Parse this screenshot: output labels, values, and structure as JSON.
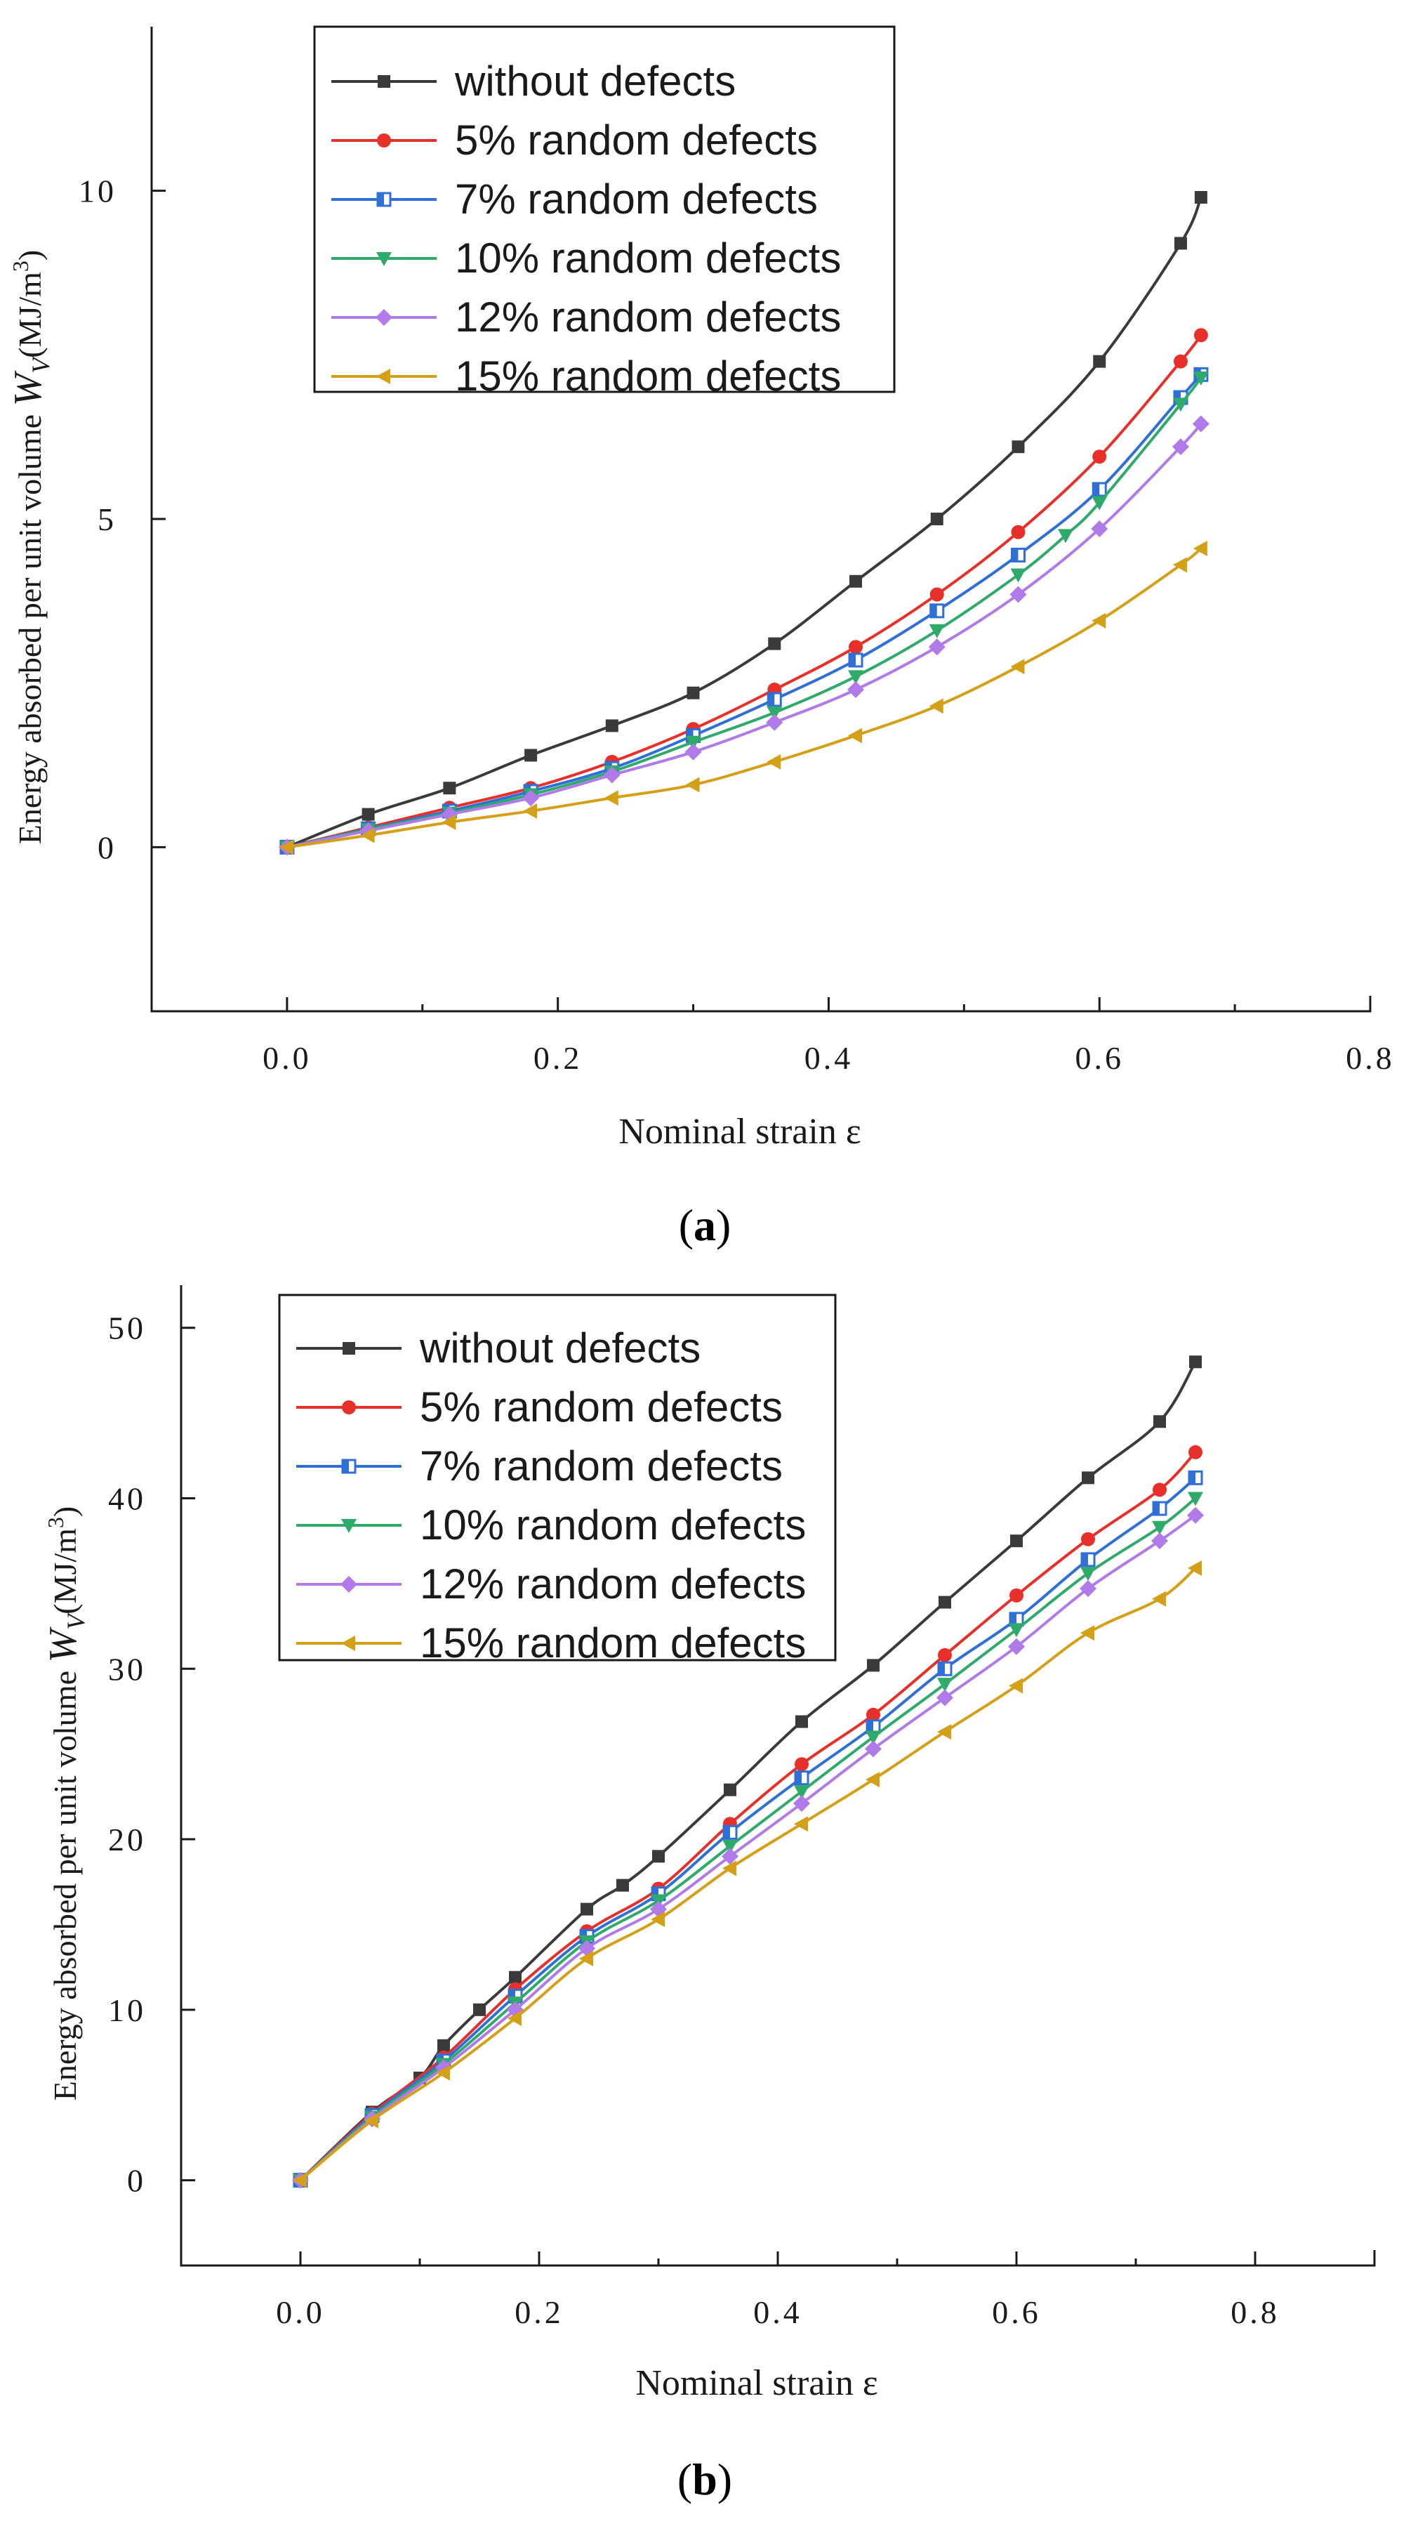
{
  "chart_data": [
    {
      "type": "line",
      "panel": "a",
      "panel_label": "a",
      "xlabel": "Nominal strain ε",
      "ylabel_parts": {
        "prefix": "Energy absorbed per unit volume ",
        "symbol": "W",
        "subscript": "V",
        "unit_open": "(MJ/m",
        "unit_exp": "3",
        "unit_close": ")"
      },
      "xlim": [
        -0.1,
        0.8
      ],
      "ylim": [
        -2.5,
        12.5
      ],
      "xticks": [
        0.0,
        0.2,
        0.4,
        0.6,
        0.8
      ],
      "xtick_labels": [
        "0.0",
        "0.2",
        "0.4",
        "0.6",
        "0.8"
      ],
      "yticks": [
        0,
        5,
        10
      ],
      "ytick_labels": [
        "0",
        "5",
        "10"
      ],
      "legend_placement": "top-left",
      "series": [
        {
          "name": "without defects",
          "color": "#3a3a3a",
          "marker": "square",
          "x": [
            0,
            0.06,
            0.12,
            0.18,
            0.24,
            0.3,
            0.36,
            0.42,
            0.48,
            0.54,
            0.6,
            0.66,
            0.675
          ],
          "y": [
            0,
            0.5,
            0.9,
            1.4,
            1.85,
            2.35,
            3.1,
            4.05,
            5.0,
            6.1,
            7.4,
            9.2,
            9.9
          ]
        },
        {
          "name": "5% random defects",
          "color": "#e8302a",
          "marker": "circle",
          "x": [
            0,
            0.06,
            0.12,
            0.18,
            0.24,
            0.3,
            0.36,
            0.42,
            0.48,
            0.54,
            0.6,
            0.66,
            0.675
          ],
          "y": [
            0,
            0.3,
            0.6,
            0.9,
            1.3,
            1.8,
            2.4,
            3.05,
            3.85,
            4.8,
            5.95,
            7.4,
            7.8
          ]
        },
        {
          "name": "7% random defects",
          "color": "#2f6fd6",
          "marker": "half-square",
          "x": [
            0,
            0.06,
            0.12,
            0.18,
            0.24,
            0.3,
            0.36,
            0.42,
            0.48,
            0.54,
            0.6,
            0.66,
            0.675
          ],
          "y": [
            0,
            0.28,
            0.55,
            0.85,
            1.2,
            1.7,
            2.25,
            2.85,
            3.6,
            4.45,
            5.45,
            6.85,
            7.2
          ]
        },
        {
          "name": "10% random defects",
          "color": "#2eaa6a",
          "marker": "triangle-down",
          "x": [
            0,
            0.06,
            0.12,
            0.18,
            0.24,
            0.3,
            0.36,
            0.42,
            0.48,
            0.54,
            0.575,
            0.6,
            0.66,
            0.675
          ],
          "y": [
            0,
            0.27,
            0.52,
            0.8,
            1.15,
            1.6,
            2.05,
            2.6,
            3.3,
            4.15,
            4.75,
            5.25,
            6.75,
            7.15
          ]
        },
        {
          "name": "12% random defects",
          "color": "#b07ae8",
          "marker": "diamond",
          "x": [
            0,
            0.06,
            0.12,
            0.18,
            0.24,
            0.3,
            0.36,
            0.42,
            0.48,
            0.54,
            0.6,
            0.66,
            0.675
          ],
          "y": [
            0,
            0.25,
            0.5,
            0.75,
            1.1,
            1.45,
            1.9,
            2.4,
            3.05,
            3.85,
            4.85,
            6.1,
            6.45
          ]
        },
        {
          "name": "15% random defects",
          "color": "#d4a017",
          "marker": "triangle-left",
          "x": [
            0,
            0.06,
            0.12,
            0.18,
            0.24,
            0.3,
            0.36,
            0.42,
            0.48,
            0.54,
            0.6,
            0.66,
            0.675
          ],
          "y": [
            0,
            0.18,
            0.38,
            0.55,
            0.75,
            0.95,
            1.3,
            1.7,
            2.15,
            2.75,
            3.45,
            4.3,
            4.55
          ]
        }
      ]
    },
    {
      "type": "line",
      "panel": "b",
      "panel_label": "b",
      "xlabel": "Nominal strain ε",
      "ylabel_parts": {
        "prefix": "Energy absorbed per unit volume ",
        "symbol": "W",
        "subscript": "V",
        "unit_open": "(MJ/m",
        "unit_exp": "3",
        "unit_close": ")"
      },
      "xlim": [
        -0.1,
        0.9
      ],
      "ylim": [
        -5,
        52.5
      ],
      "xticks": [
        0.0,
        0.2,
        0.4,
        0.6,
        0.8
      ],
      "xtick_labels": [
        "0.0",
        "0.2",
        "0.4",
        "0.6",
        "0.8"
      ],
      "yticks": [
        0,
        10,
        20,
        30,
        40,
        50
      ],
      "ytick_labels": [
        "0",
        "10",
        "20",
        "30",
        "40",
        "50"
      ],
      "legend_placement": "top-left",
      "series": [
        {
          "name": "without defects",
          "color": "#3a3a3a",
          "marker": "square",
          "x": [
            0,
            0.06,
            0.1,
            0.12,
            0.15,
            0.18,
            0.24,
            0.27,
            0.3,
            0.36,
            0.42,
            0.48,
            0.54,
            0.6,
            0.66,
            0.72,
            0.75
          ],
          "y": [
            0,
            4.0,
            6.0,
            7.9,
            10.0,
            11.9,
            15.9,
            17.3,
            19.0,
            22.9,
            26.9,
            30.2,
            33.9,
            37.5,
            41.2,
            44.5,
            48.0
          ]
        },
        {
          "name": "5% random defects",
          "color": "#e8302a",
          "marker": "circle",
          "x": [
            0,
            0.06,
            0.12,
            0.18,
            0.24,
            0.3,
            0.36,
            0.42,
            0.48,
            0.54,
            0.6,
            0.66,
            0.72,
            0.75
          ],
          "y": [
            0,
            3.9,
            7.2,
            11.2,
            14.6,
            17.1,
            20.9,
            24.4,
            27.3,
            30.8,
            34.3,
            37.6,
            40.5,
            42.7
          ]
        },
        {
          "name": "7% random defects",
          "color": "#2f6fd6",
          "marker": "half-square",
          "x": [
            0,
            0.06,
            0.12,
            0.18,
            0.24,
            0.3,
            0.36,
            0.42,
            0.48,
            0.54,
            0.6,
            0.66,
            0.72,
            0.75
          ],
          "y": [
            0,
            3.8,
            7.0,
            10.8,
            14.3,
            16.8,
            20.4,
            23.6,
            26.6,
            30.0,
            32.9,
            36.4,
            39.4,
            41.2
          ]
        },
        {
          "name": "10% random defects",
          "color": "#2eaa6a",
          "marker": "triangle-down",
          "x": [
            0,
            0.06,
            0.12,
            0.18,
            0.24,
            0.3,
            0.36,
            0.42,
            0.48,
            0.54,
            0.6,
            0.66,
            0.72,
            0.75
          ],
          "y": [
            0,
            3.7,
            6.8,
            10.4,
            14.0,
            16.4,
            19.6,
            22.8,
            26.0,
            29.1,
            32.3,
            35.6,
            38.3,
            40.0
          ]
        },
        {
          "name": "12% random defects",
          "color": "#b07ae8",
          "marker": "diamond",
          "x": [
            0,
            0.06,
            0.12,
            0.18,
            0.24,
            0.3,
            0.36,
            0.42,
            0.48,
            0.54,
            0.6,
            0.66,
            0.72,
            0.75
          ],
          "y": [
            0,
            3.6,
            6.6,
            10.0,
            13.6,
            15.9,
            19.0,
            22.1,
            25.3,
            28.3,
            31.3,
            34.7,
            37.5,
            39.0
          ]
        },
        {
          "name": "15% random defects",
          "color": "#d4a017",
          "marker": "triangle-left",
          "x": [
            0,
            0.06,
            0.12,
            0.18,
            0.24,
            0.3,
            0.36,
            0.42,
            0.48,
            0.54,
            0.6,
            0.66,
            0.72,
            0.75
          ],
          "y": [
            0,
            3.5,
            6.3,
            9.5,
            13.0,
            15.3,
            18.3,
            20.9,
            23.5,
            26.3,
            29.0,
            32.1,
            34.1,
            35.9
          ]
        }
      ]
    }
  ]
}
